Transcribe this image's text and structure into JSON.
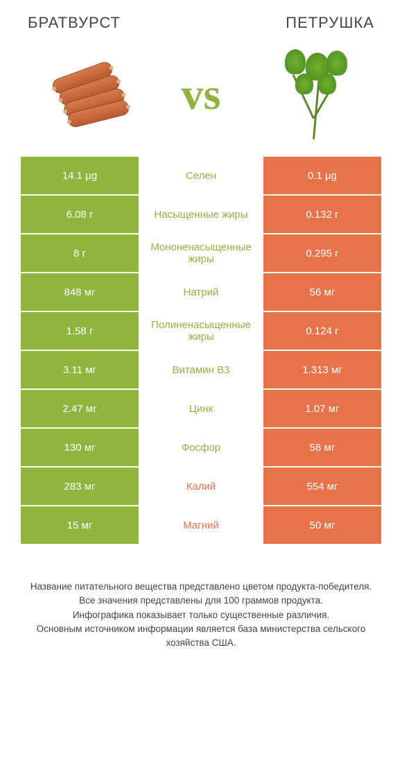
{
  "colors": {
    "left": "#8fb53f",
    "right": "#e8724a",
    "mid_bg": "#ffffff"
  },
  "header": {
    "left_title": "БРАТВУРСТ",
    "right_title": "ПЕТРУШКА",
    "vs": "vs"
  },
  "rows": [
    {
      "left": "14.1 µg",
      "label": "Селен",
      "right": "0.1 µg",
      "winner": "left"
    },
    {
      "left": "6.08 г",
      "label": "Насыщенные жиры",
      "right": "0.132 г",
      "winner": "left"
    },
    {
      "left": "8 г",
      "label": "Мононенасыщенные жиры",
      "right": "0.295 г",
      "winner": "left"
    },
    {
      "left": "848 мг",
      "label": "Натрий",
      "right": "56 мг",
      "winner": "left"
    },
    {
      "left": "1.58 г",
      "label": "Полиненасыщенные жиры",
      "right": "0.124 г",
      "winner": "left"
    },
    {
      "left": "3.11 мг",
      "label": "Витамин B3",
      "right": "1.313 мг",
      "winner": "left"
    },
    {
      "left": "2.47 мг",
      "label": "Цинк",
      "right": "1.07 мг",
      "winner": "left"
    },
    {
      "left": "130 мг",
      "label": "Фосфор",
      "right": "58 мг",
      "winner": "left"
    },
    {
      "left": "283 мг",
      "label": "Калий",
      "right": "554 мг",
      "winner": "right"
    },
    {
      "left": "15 мг",
      "label": "Магний",
      "right": "50 мг",
      "winner": "right"
    }
  ],
  "footer": {
    "line1": "Название питательного вещества представлено цветом продукта-победителя.",
    "line2": "Все значения представлены для 100 граммов продукта.",
    "line3": "Инфографика показывает только существенные различия.",
    "line4": "Основным источником информации является база министерства сельского хозяйства США."
  }
}
